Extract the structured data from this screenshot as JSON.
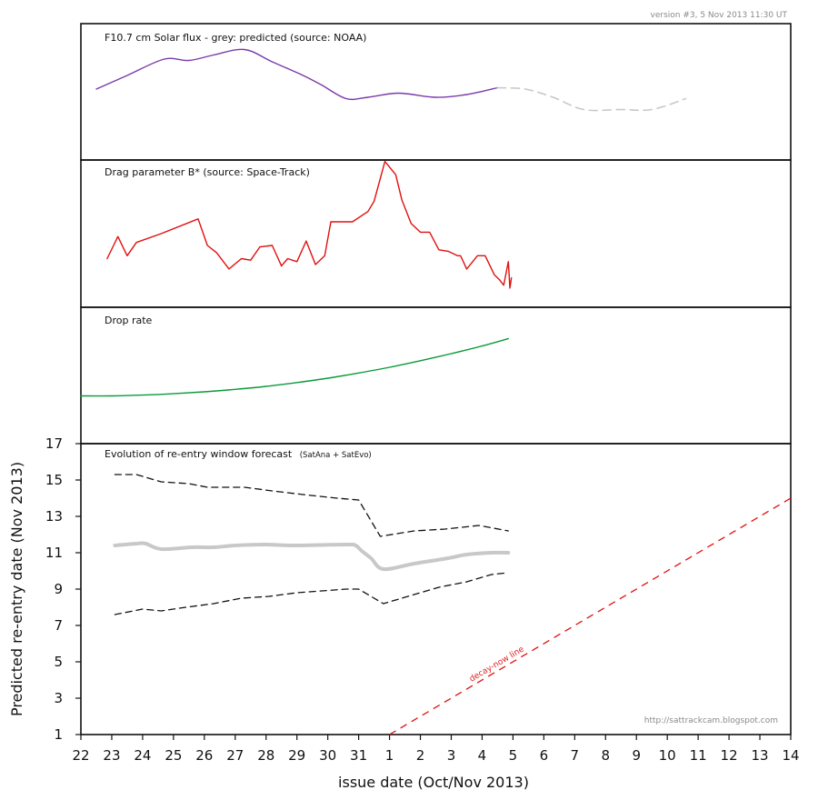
{
  "version_note": "version #3, 5 Nov 2013 11:30 UT",
  "credit": "http://sattrackcam.blogspot.com",
  "colors": {
    "flux": "#7a3aa8",
    "flux_predicted": "#c8c8c8",
    "bstar": "#e01010",
    "droprate": "#0a9a3a",
    "window_center": "#c8c8c8",
    "window_bounds": "#111111",
    "decay_line": "#e01010",
    "frame": "#111111"
  },
  "chart_data": [
    {
      "type": "line",
      "panel": "solar-flux",
      "title": "F10.7 cm Solar flux  - grey: predicted   (source: NOAA)",
      "ylabel": "",
      "ylim": [
        0,
        1
      ],
      "series": [
        {
          "name": "observed",
          "x": [
            22.5,
            23.5,
            24.7,
            25.5,
            26.3,
            27.3,
            28.2,
            29.2,
            29.8,
            30.6,
            31.3,
            32.3,
            33.5,
            34.5,
            35.5
          ],
          "y": [
            0.52,
            0.62,
            0.74,
            0.73,
            0.77,
            0.81,
            0.72,
            0.62,
            0.55,
            0.45,
            0.46,
            0.49,
            0.46,
            0.48,
            0.53
          ]
        },
        {
          "name": "predicted",
          "x": [
            35.5,
            36.4,
            37.3,
            38.3,
            39.5,
            40.5,
            41.6
          ],
          "y": [
            0.53,
            0.52,
            0.46,
            0.37,
            0.37,
            0.37,
            0.45
          ]
        }
      ]
    },
    {
      "type": "line",
      "panel": "drag-parameter",
      "title": "Drag parameter B*  (source: Space-Track)",
      "ylabel": "",
      "ylim": [
        0,
        1
      ],
      "series": [
        {
          "name": "B*",
          "x": [
            22.85,
            23.2,
            23.5,
            23.8,
            24.6,
            25.8,
            26.1,
            26.4,
            26.8,
            27.2,
            27.5,
            27.8,
            28.2,
            28.5,
            28.7,
            29.0,
            29.3,
            29.6,
            29.9,
            30.1,
            30.8,
            31.3,
            31.5,
            31.85,
            32.2,
            32.4,
            32.7,
            33.0,
            33.3,
            33.6,
            33.9,
            34.2,
            34.3,
            34.5,
            34.85,
            35.1,
            35.4,
            35.55,
            35.7,
            35.85,
            35.9,
            35.95
          ],
          "y": [
            0.33,
            0.48,
            0.35,
            0.44,
            0.5,
            0.6,
            0.42,
            0.37,
            0.26,
            0.33,
            0.32,
            0.41,
            0.42,
            0.28,
            0.33,
            0.31,
            0.45,
            0.29,
            0.35,
            0.58,
            0.58,
            0.65,
            0.72,
            0.99,
            0.9,
            0.73,
            0.57,
            0.51,
            0.51,
            0.39,
            0.38,
            0.35,
            0.35,
            0.26,
            0.35,
            0.35,
            0.22,
            0.19,
            0.15,
            0.31,
            0.13,
            0.2
          ]
        }
      ]
    },
    {
      "type": "line",
      "panel": "drop-rate",
      "title": "Drop rate",
      "ylabel": "",
      "ylim": [
        0,
        1
      ],
      "series": [
        {
          "name": "drop rate",
          "x": [
            22.0,
            23.0,
            24.0,
            25.0,
            26.0,
            27.0,
            28.0,
            29.0,
            30.0,
            31.0,
            32.0,
            33.0,
            34.0,
            35.0,
            35.85
          ],
          "y": [
            0.35,
            0.35,
            0.356,
            0.366,
            0.38,
            0.398,
            0.42,
            0.448,
            0.48,
            0.518,
            0.56,
            0.608,
            0.66,
            0.716,
            0.77
          ]
        }
      ]
    },
    {
      "type": "line",
      "panel": "re-entry-window",
      "title": "Evolution of re-entry window forecast",
      "subtitle": "(SatAna + SatEvo)",
      "xlabel": "issue date (Oct/Nov 2013)",
      "ylabel": "Predicted re-entry date (Nov 2013)",
      "xlim": [
        22,
        45
      ],
      "ylim": [
        1,
        17
      ],
      "x_ticks": [
        "22",
        "23",
        "24",
        "25",
        "26",
        "27",
        "28",
        "29",
        "30",
        "31",
        "1",
        "2",
        "3",
        "4",
        "5",
        "6",
        "7",
        "8",
        "9",
        "10",
        "11",
        "12",
        "13",
        "14"
      ],
      "y_ticks": [
        "1",
        "3",
        "5",
        "7",
        "9",
        "11",
        "13",
        "15",
        "17"
      ],
      "decay_line_label": "decay-now line",
      "series": [
        {
          "name": "upper bound",
          "x": [
            23.1,
            23.8,
            24.6,
            25.5,
            26.1,
            27.3,
            28.2,
            29.2,
            30.3,
            31.0,
            31.7,
            32.8,
            33.8,
            34.9,
            35.85
          ],
          "y": [
            15.3,
            15.3,
            14.9,
            14.8,
            14.6,
            14.6,
            14.4,
            14.2,
            14.0,
            13.9,
            11.9,
            12.2,
            12.3,
            12.5,
            12.2
          ]
        },
        {
          "name": "predicted center",
          "x": [
            23.1,
            23.8,
            24.1,
            24.6,
            25.6,
            26.3,
            27.0,
            28.0,
            28.8,
            30.6,
            30.9,
            31.1,
            31.4,
            31.8,
            32.8,
            33.9,
            34.5,
            35.3,
            35.85
          ],
          "y": [
            11.4,
            11.5,
            11.5,
            11.2,
            11.3,
            11.3,
            11.4,
            11.45,
            11.4,
            11.45,
            11.4,
            11.1,
            10.7,
            10.1,
            10.4,
            10.7,
            10.9,
            11.0,
            11.0
          ]
        },
        {
          "name": "lower bound",
          "x": [
            23.1,
            24.0,
            24.6,
            25.4,
            26.3,
            27.2,
            28.1,
            29.0,
            30.6,
            31.0,
            31.8,
            32.6,
            33.6,
            34.5,
            35.3,
            35.85
          ],
          "y": [
            7.6,
            7.9,
            7.8,
            8.0,
            8.2,
            8.5,
            8.6,
            8.8,
            9.0,
            9.0,
            8.2,
            8.6,
            9.1,
            9.4,
            9.8,
            9.9
          ]
        },
        {
          "name": "decay-now line",
          "x": [
            32.0,
            45.0
          ],
          "y": [
            1.0,
            14.0
          ]
        }
      ]
    }
  ]
}
